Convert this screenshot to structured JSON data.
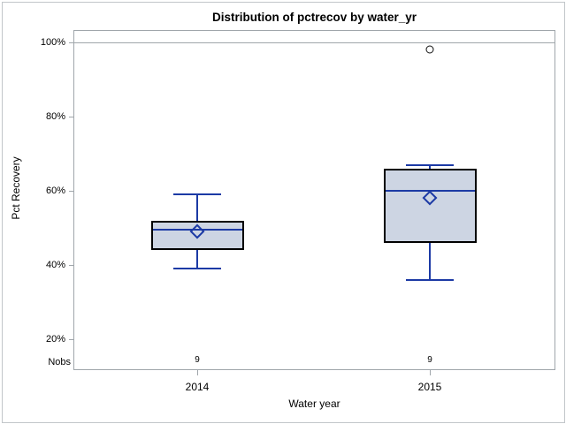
{
  "title": "Distribution of pctrecov by water_yr",
  "y_axis": {
    "label": "Pct Recovery",
    "tick_labels": [
      "100%",
      "80%",
      "60%",
      "40%",
      "20%"
    ]
  },
  "x_axis": {
    "label": "Water year"
  },
  "nobs_row": {
    "label": "Nobs"
  },
  "colors": {
    "box_fill": "#cdd5e3",
    "box_border": "#000000",
    "line_blue": "#1c3aa5",
    "axis_gray": "#a0a6ab",
    "outlier_black": "#111111"
  },
  "chart_data": {
    "type": "boxplot",
    "title": "Distribution of pctrecov by water_yr",
    "xlabel": "Water year",
    "ylabel": "Pct Recovery",
    "ylim": [
      12,
      103
    ],
    "yticks": [
      100,
      80,
      60,
      40,
      20
    ],
    "ytick_format": "percent",
    "grid": false,
    "refline_y": 100,
    "categories": [
      "2014",
      "2015"
    ],
    "boxes": [
      {
        "category": "2014",
        "whisker_low": 39,
        "q1": 44,
        "median": 49.5,
        "q3": 52,
        "whisker_high": 59,
        "mean": 49,
        "outliers": [],
        "nobs": "9"
      },
      {
        "category": "2015",
        "whisker_low": 36,
        "q1": 46,
        "median": 60,
        "q3": 66,
        "whisker_high": 67,
        "mean": 58,
        "outliers": [
          98
        ],
        "nobs": "9"
      }
    ]
  }
}
